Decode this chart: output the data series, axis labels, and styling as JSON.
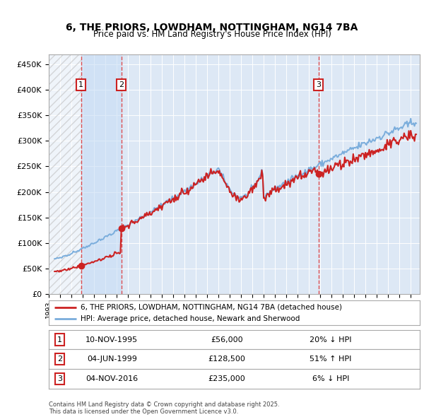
{
  "title_line1": "6, THE PRIORS, LOWDHAM, NOTTINGHAM, NG14 7BA",
  "title_line2": "Price paid vs. HM Land Registry's House Price Index (HPI)",
  "ylim": [
    0,
    470000
  ],
  "yticks": [
    0,
    50000,
    100000,
    150000,
    200000,
    250000,
    300000,
    350000,
    400000,
    450000
  ],
  "ytick_labels": [
    "£0",
    "£50K",
    "£100K",
    "£150K",
    "£200K",
    "£250K",
    "£300K",
    "£350K",
    "£400K",
    "£450K"
  ],
  "hpi_color": "#7aaddc",
  "price_color": "#cc2222",
  "sale_color": "#cc2222",
  "plot_bg_color": "#dde8f5",
  "fig_bg_color": "#ffffff",
  "sale1_date_num": 1995.858,
  "sale2_date_num": 1999.42,
  "sale3_date_num": 2016.84,
  "sale1_price": 56000,
  "sale2_price": 128500,
  "sale3_price": 235000,
  "legend_line1": "6, THE PRIORS, LOWDHAM, NOTTINGHAM, NG14 7BA (detached house)",
  "legend_line2": "HPI: Average price, detached house, Newark and Sherwood",
  "annotation1_date": "10-NOV-1995",
  "annotation1_price": "£56,000",
  "annotation1_hpi": "20% ↓ HPI",
  "annotation2_date": "04-JUN-1999",
  "annotation2_price": "£128,500",
  "annotation2_hpi": "51% ↑ HPI",
  "annotation3_date": "04-NOV-2016",
  "annotation3_price": "£235,000",
  "annotation3_hpi": "6% ↓ HPI",
  "footer": "Contains HM Land Registry data © Crown copyright and database right 2025.\nThis data is licensed under the Open Government Licence v3.0.",
  "xstart": 1993.0,
  "xend": 2025.8
}
